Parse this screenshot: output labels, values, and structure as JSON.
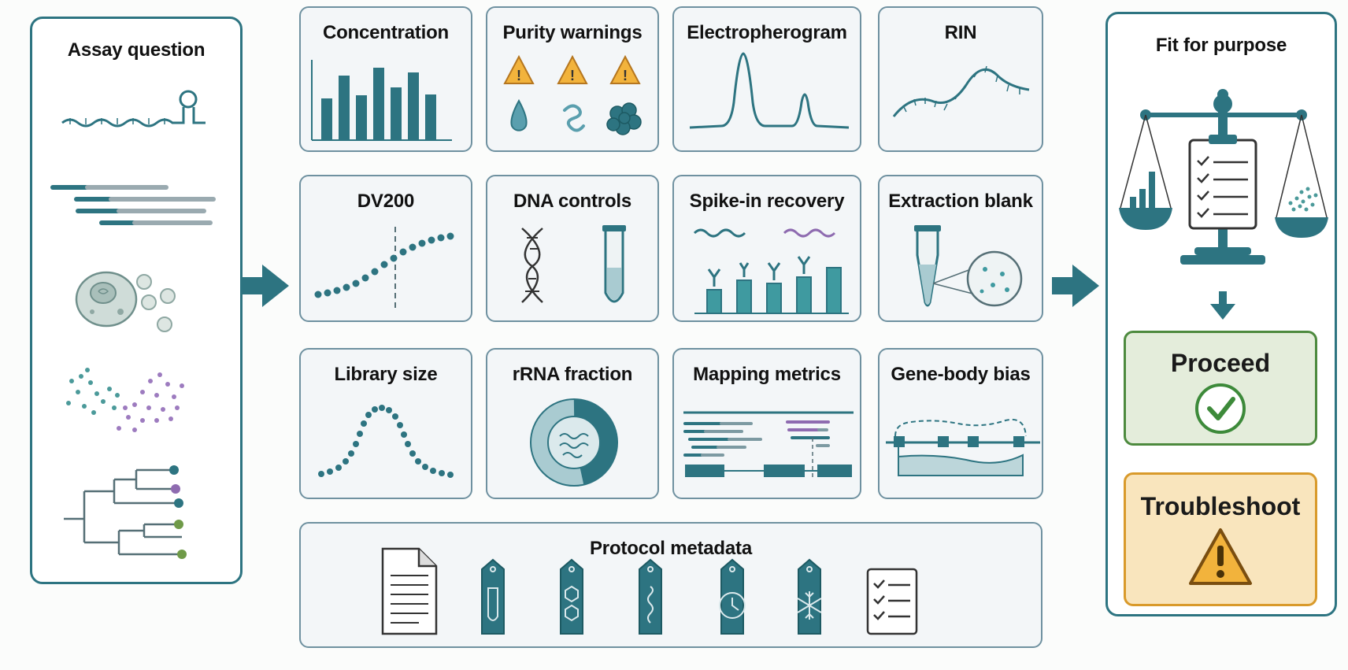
{
  "assay": {
    "title": "Assay question"
  },
  "cards": {
    "concentration": "Concentration",
    "purity": "Purity warnings",
    "electro": "Electropherogram",
    "rin": "RIN",
    "dv200": "DV200",
    "dna": "DNA controls",
    "spike": "Spike-in recovery",
    "blank": "Extraction blank",
    "library": "Library size",
    "rrna": "rRNA fraction",
    "mapping": "Mapping metrics",
    "genebody": "Gene-body bias",
    "protocol": "Protocol metadata"
  },
  "fit": {
    "title": "Fit for purpose",
    "proceed": "Proceed",
    "troubleshoot": "Troubleshoot"
  },
  "colors": {
    "teal": "#2d7481",
    "purple": "#8e6bb0",
    "green": "#3d8a3a",
    "orange": "#d99a2b"
  }
}
